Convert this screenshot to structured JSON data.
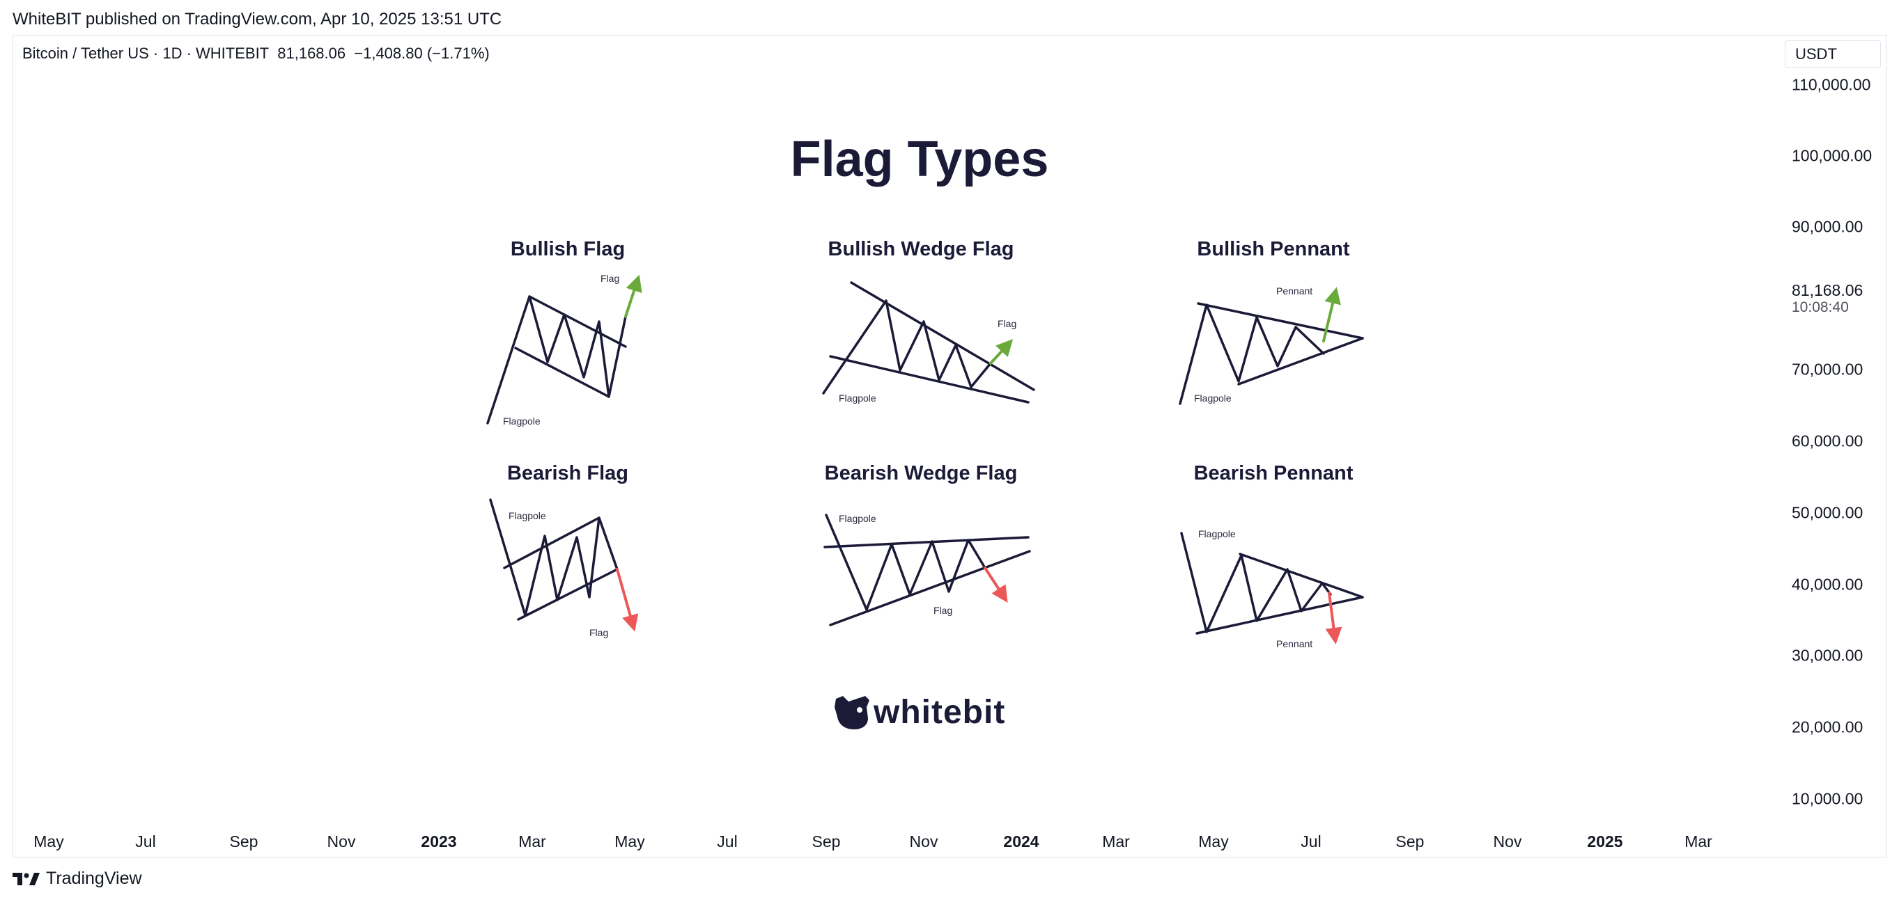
{
  "header": {
    "published_line": "WhiteBIT published on TradingView.com, Apr 10, 2025 13:51 UTC"
  },
  "symbol": {
    "name": "Bitcoin / Tether US · 1D · WHITEBIT",
    "price": "81,168.06",
    "change": "−1,408.80 (−1.71%)"
  },
  "price_axis": {
    "currency": "USDT",
    "labels": [
      "110,000.00",
      "100,000.00",
      "90,000.00",
      "70,000.00",
      "60,000.00",
      "50,000.00",
      "40,000.00",
      "30,000.00",
      "20,000.00",
      "10,000.00"
    ],
    "last_price": "81,168.06",
    "countdown": "10:08:40"
  },
  "time_axis": {
    "labels": [
      {
        "text": "May",
        "bold": false
      },
      {
        "text": "Jul",
        "bold": false
      },
      {
        "text": "Sep",
        "bold": false
      },
      {
        "text": "Nov",
        "bold": false
      },
      {
        "text": "2023",
        "bold": true
      },
      {
        "text": "Mar",
        "bold": false
      },
      {
        "text": "May",
        "bold": false
      },
      {
        "text": "Jul",
        "bold": false
      },
      {
        "text": "Sep",
        "bold": false
      },
      {
        "text": "Nov",
        "bold": false
      },
      {
        "text": "2024",
        "bold": true
      },
      {
        "text": "Mar",
        "bold": false
      },
      {
        "text": "May",
        "bold": false
      },
      {
        "text": "Jul",
        "bold": false
      },
      {
        "text": "Sep",
        "bold": false
      },
      {
        "text": "Nov",
        "bold": false
      },
      {
        "text": "2025",
        "bold": true
      },
      {
        "text": "Mar",
        "bold": false
      }
    ]
  },
  "infographic": {
    "title": "Flag Types",
    "patterns": {
      "bullish_flag": "Bullish Flag",
      "bullish_wedge_flag": "Bullish Wedge Flag",
      "bullish_pennant": "Bullish Pennant",
      "bearish_flag": "Bearish Flag",
      "bearish_wedge_flag": "Bearish Wedge Flag",
      "bearish_pennant": "Bearish Pennant"
    },
    "annotations": {
      "flag": "Flag",
      "flagpole": "Flagpole",
      "pennant": "Pennant"
    },
    "colors": {
      "line": "#1b1b38",
      "bullish": "#6aaa3a",
      "bearish": "#ec5757"
    },
    "brand": "whitebit"
  },
  "footer": {
    "brand": "TradingView"
  }
}
